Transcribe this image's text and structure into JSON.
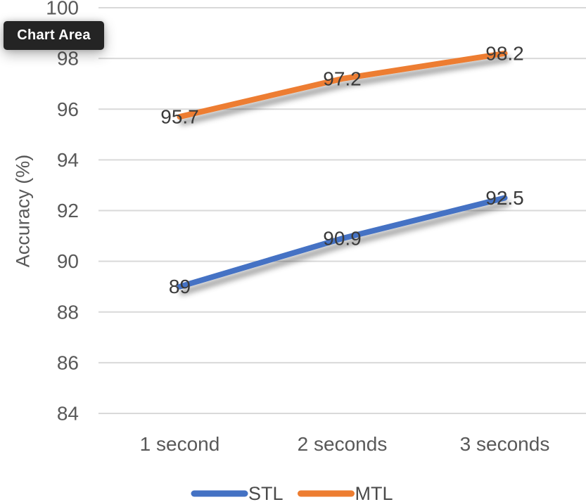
{
  "tooltip": {
    "label": "Chart Area"
  },
  "chart_data": {
    "type": "line",
    "categories": [
      "1 second",
      "2 seconds",
      "3 seconds"
    ],
    "series": [
      {
        "name": "STL",
        "values": [
          89,
          90.9,
          92.5
        ],
        "color": "#4472C4"
      },
      {
        "name": "MTL",
        "values": [
          95.7,
          97.2,
          98.2
        ],
        "color": "#ED7D31"
      }
    ],
    "title": "",
    "xlabel": "",
    "ylabel": "Accuracy (%)",
    "ylim": [
      84,
      100
    ],
    "yticks": [
      84,
      86,
      88,
      90,
      92,
      94,
      96,
      98,
      100
    ],
    "grid": true,
    "legend_position": "bottom",
    "data_labels": true,
    "gridline_color": "#D9D9D9",
    "axis_text_color": "#595959",
    "label_text_color": "#3A3A3A",
    "tooltip_bg_color": "#242424",
    "tooltip_text_color": "#FFFFFF"
  }
}
